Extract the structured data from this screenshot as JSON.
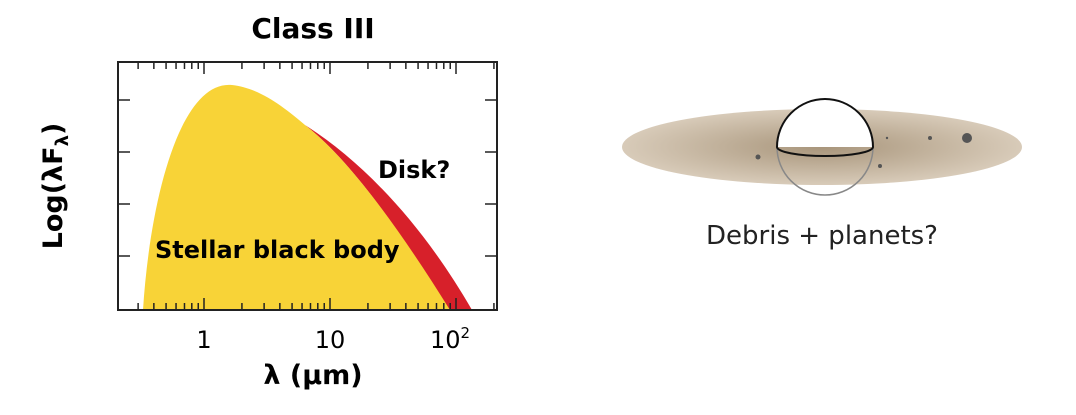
{
  "title": "Class III",
  "y_axis_label": "Log(λF",
  "y_axis_label_sub": "λ",
  "y_axis_label_end": ")",
  "x_axis_label": "λ (μm)",
  "x_tick_labels": [
    "1",
    "10",
    "10"
  ],
  "x_tick_superscript": "2",
  "annotations": {
    "disk": "Disk?",
    "stellar": "Stellar black body"
  },
  "caption": "Debris + planets?"
}
